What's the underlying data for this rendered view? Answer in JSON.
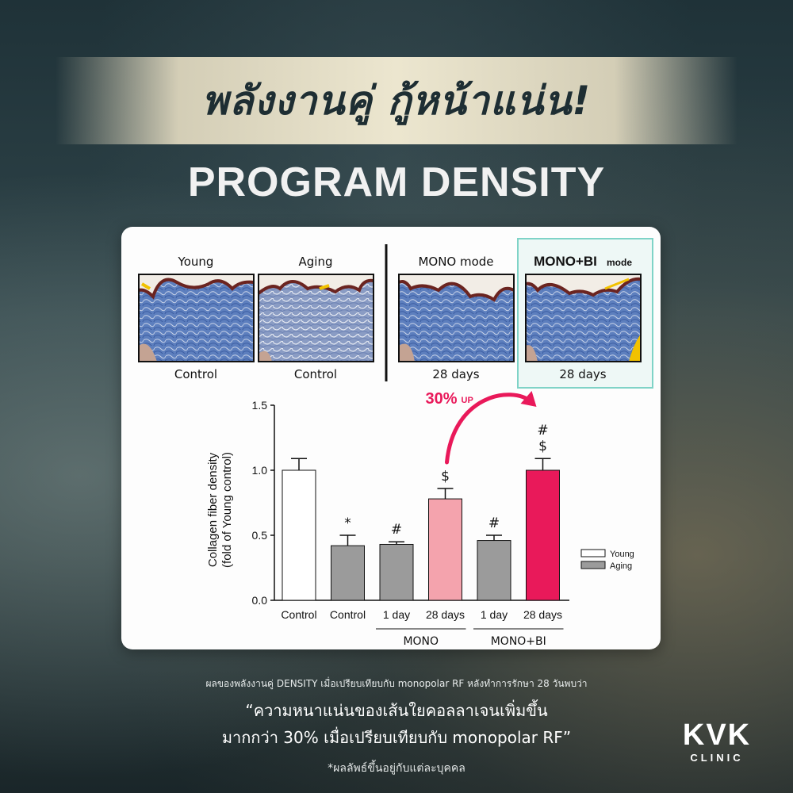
{
  "header": {
    "headline": "พลังงานคู่ กู้หน้าแน่น!",
    "program": "PROGRAM DENSITY"
  },
  "histology": {
    "panels": [
      {
        "top_label": "Young",
        "bottom_label": "Control"
      },
      {
        "top_label": "Aging",
        "bottom_label": "Control"
      },
      {
        "top_label": "MONO mode",
        "bottom_label": "28 days"
      },
      {
        "top_label": "MONO+BI",
        "top_label_suffix": "mode",
        "bottom_label": "28 days"
      }
    ],
    "highlight_color": "#7fd3c7"
  },
  "chart_data": {
    "type": "bar",
    "ylabel": "Collagen fiber density (fold of Young control)",
    "ylabel_line1": "Collagen fiber density",
    "ylabel_line2": "(fold of Young control)",
    "ylim": [
      0,
      1.5
    ],
    "yticks": [
      "0.0",
      "0.5",
      "1.0",
      "1.5"
    ],
    "categories": [
      "Control",
      "Control",
      "1 day",
      "28 days",
      "1 day",
      "28 days"
    ],
    "values": [
      1.0,
      0.42,
      0.43,
      0.78,
      0.46,
      1.0
    ],
    "errors": [
      0.09,
      0.08,
      0.02,
      0.08,
      0.04,
      0.09
    ],
    "colors": [
      "#ffffff",
      "#9b9b9b",
      "#9b9b9b",
      "#f4a3ad",
      "#9b9b9b",
      "#e9195a"
    ],
    "significance": [
      [],
      [
        "*"
      ],
      [
        "#"
      ],
      [
        "$"
      ],
      [
        "#"
      ],
      [
        "$",
        "#"
      ]
    ],
    "groups": [
      {
        "label": "MONO",
        "from": 2,
        "to": 3
      },
      {
        "label": "MONO+BI",
        "from": 4,
        "to": 5
      }
    ],
    "legend": [
      {
        "name": "Young",
        "color": "#ffffff"
      },
      {
        "name": "Aging",
        "color": "#9b9b9b"
      }
    ],
    "legend_position": "right",
    "annotation": {
      "main": "30%",
      "suffix": "UP",
      "color": "#e9195a"
    },
    "grid": false
  },
  "footer": {
    "small": "ผลของพลังงานคู่ DENSITY เมื่อเปรียบเทียบกับ monopolar RF หลังทำการรักษา 28 วันพบว่า",
    "quote_line1": "“ความหนาแน่นของเส้นใยคอลลาเจนเพิ่มขึ้น",
    "quote_line2": "มากกว่า 30% เมื่อเปรียบเทียบกับ monopolar RF”",
    "note": "*ผลลัพธ์ขึ้นอยู่กับแต่ละบุคคล"
  },
  "logo": {
    "top": "KVK",
    "bottom": "CLINIC"
  }
}
